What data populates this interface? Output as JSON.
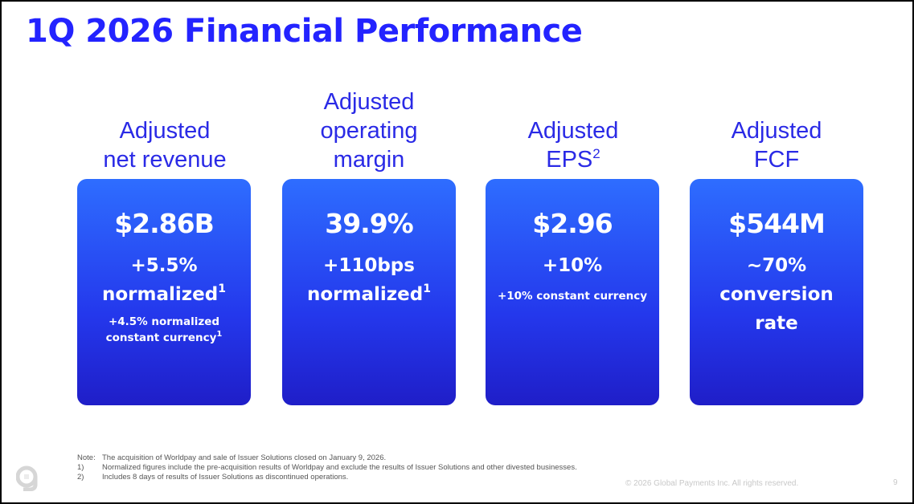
{
  "title": "1Q 2026 Financial Performance",
  "metrics": [
    {
      "label_line1": "Adjusted",
      "label_line2": "net revenue",
      "value": "$2.86B",
      "line1": "+5.5%",
      "line2": "normalized",
      "line2_sup": "1",
      "sub_line1": "+4.5% normalized",
      "sub_line2": "constant currency",
      "sub_sup": "1"
    },
    {
      "label_line1": "Adjusted",
      "label_line2": "operating",
      "label_line3": "margin",
      "value": "39.9%",
      "line1": "+110bps",
      "line2": "normalized",
      "line2_sup": "1"
    },
    {
      "label_line1": "Adjusted",
      "label_line2": "EPS",
      "label_sup": "2",
      "value": "$2.96",
      "line1": "+10%",
      "sub": "+10% constant currency"
    },
    {
      "label_line1": "Adjusted",
      "label_line2": "FCF",
      "value": "$544M",
      "line1": "~70%",
      "line2": "conversion",
      "line3": "rate"
    }
  ],
  "notes": {
    "note_label": "Note:",
    "note_text": "The acquisition of Worldpay and sale of Issuer Solutions closed on January 9, 2026.",
    "footnotes": [
      {
        "num": "1)",
        "text": "Normalized figures include the pre-acquisition results of Worldpay and exclude the results of Issuer Solutions and other divested businesses."
      },
      {
        "num": "2)",
        "text": "Includes 8 days of results of Issuer Solutions as discontinued operations."
      }
    ]
  },
  "copyright": "© 2026 Global Payments Inc. All rights reserved.",
  "page_number": "9",
  "colors": {
    "accent": "#2323ff",
    "card_top": "#2e6dff",
    "card_bottom": "#1f1ec8"
  },
  "logo_icon": "global-payments-g-logo"
}
